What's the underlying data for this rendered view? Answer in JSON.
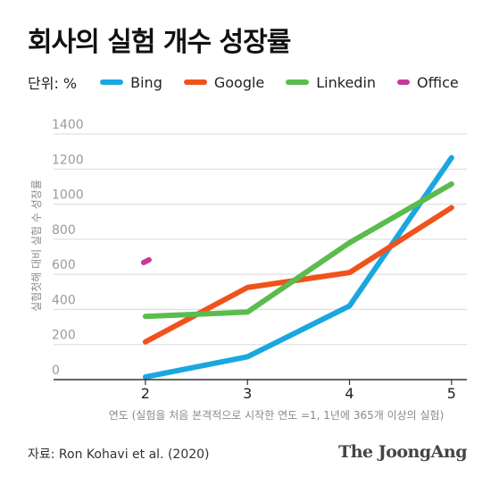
{
  "title": "회사의 실험 개수 성장률",
  "unit_label": "단위: %",
  "source": "자료: Ron Kohavi et al. (2020)",
  "brand": "The JoongAng",
  "colors": {
    "Bing": "#1aa7e0",
    "Google": "#f0521c",
    "Linkedin": "#5cbb4f",
    "Office": "#c6389a"
  },
  "chart_data": {
    "type": "line",
    "title": "회사의 실험 개수 성장률",
    "xlabel": "연도 (실험을 처음 본격적으로 시작한 연도 =1, 1년에 365개 이상의 실험)",
    "ylabel": "실험첫해 대비 실험 수 성장률",
    "x": [
      2,
      3,
      4,
      5
    ],
    "ylim": [
      0,
      1400
    ],
    "yticks": [
      0,
      200,
      400,
      600,
      800,
      1000,
      1200,
      1400
    ],
    "grid": true,
    "legend": "top",
    "series": [
      {
        "name": "Bing",
        "values": [
          15,
          130,
          420,
          1265
        ]
      },
      {
        "name": "Google",
        "values": [
          215,
          525,
          610,
          980
        ]
      },
      {
        "name": "Linkedin",
        "values": [
          360,
          385,
          780,
          1115
        ]
      },
      {
        "name": "Office",
        "values": [
          675,
          null,
          null,
          null
        ]
      }
    ]
  }
}
